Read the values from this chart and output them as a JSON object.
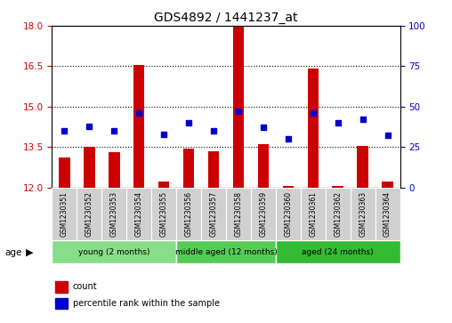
{
  "title": "GDS4892 / 1441237_at",
  "samples": [
    "GSM1230351",
    "GSM1230352",
    "GSM1230353",
    "GSM1230354",
    "GSM1230355",
    "GSM1230356",
    "GSM1230357",
    "GSM1230358",
    "GSM1230359",
    "GSM1230360",
    "GSM1230361",
    "GSM1230362",
    "GSM1230363",
    "GSM1230364"
  ],
  "count_values": [
    13.1,
    13.5,
    13.3,
    16.55,
    12.2,
    13.45,
    13.35,
    18.0,
    13.6,
    12.05,
    16.4,
    12.05,
    13.55,
    12.2
  ],
  "percentile_values": [
    35,
    38,
    35,
    46,
    33,
    40,
    35,
    47,
    37,
    30,
    46,
    40,
    42,
    32
  ],
  "ylim_left": [
    12,
    18
  ],
  "ylim_right": [
    0,
    100
  ],
  "yticks_left": [
    12,
    13.5,
    15,
    16.5,
    18
  ],
  "yticks_right": [
    0,
    25,
    50,
    75,
    100
  ],
  "bar_color": "#cc0000",
  "dot_color": "#0000cc",
  "group_labels": [
    "young (2 months)",
    "middle aged (12 months)",
    "aged (24 months)"
  ],
  "group_ranges": [
    [
      0,
      5
    ],
    [
      5,
      9
    ],
    [
      9,
      14
    ]
  ],
  "group_colors": [
    "#88dd88",
    "#55cc55",
    "#33bb33"
  ],
  "age_label": "age",
  "legend_count": "count",
  "legend_percentile": "percentile rank within the sample",
  "background_color": "#ffffff",
  "axis_label_color_left": "#cc0000",
  "axis_label_color_right": "#0000cc"
}
